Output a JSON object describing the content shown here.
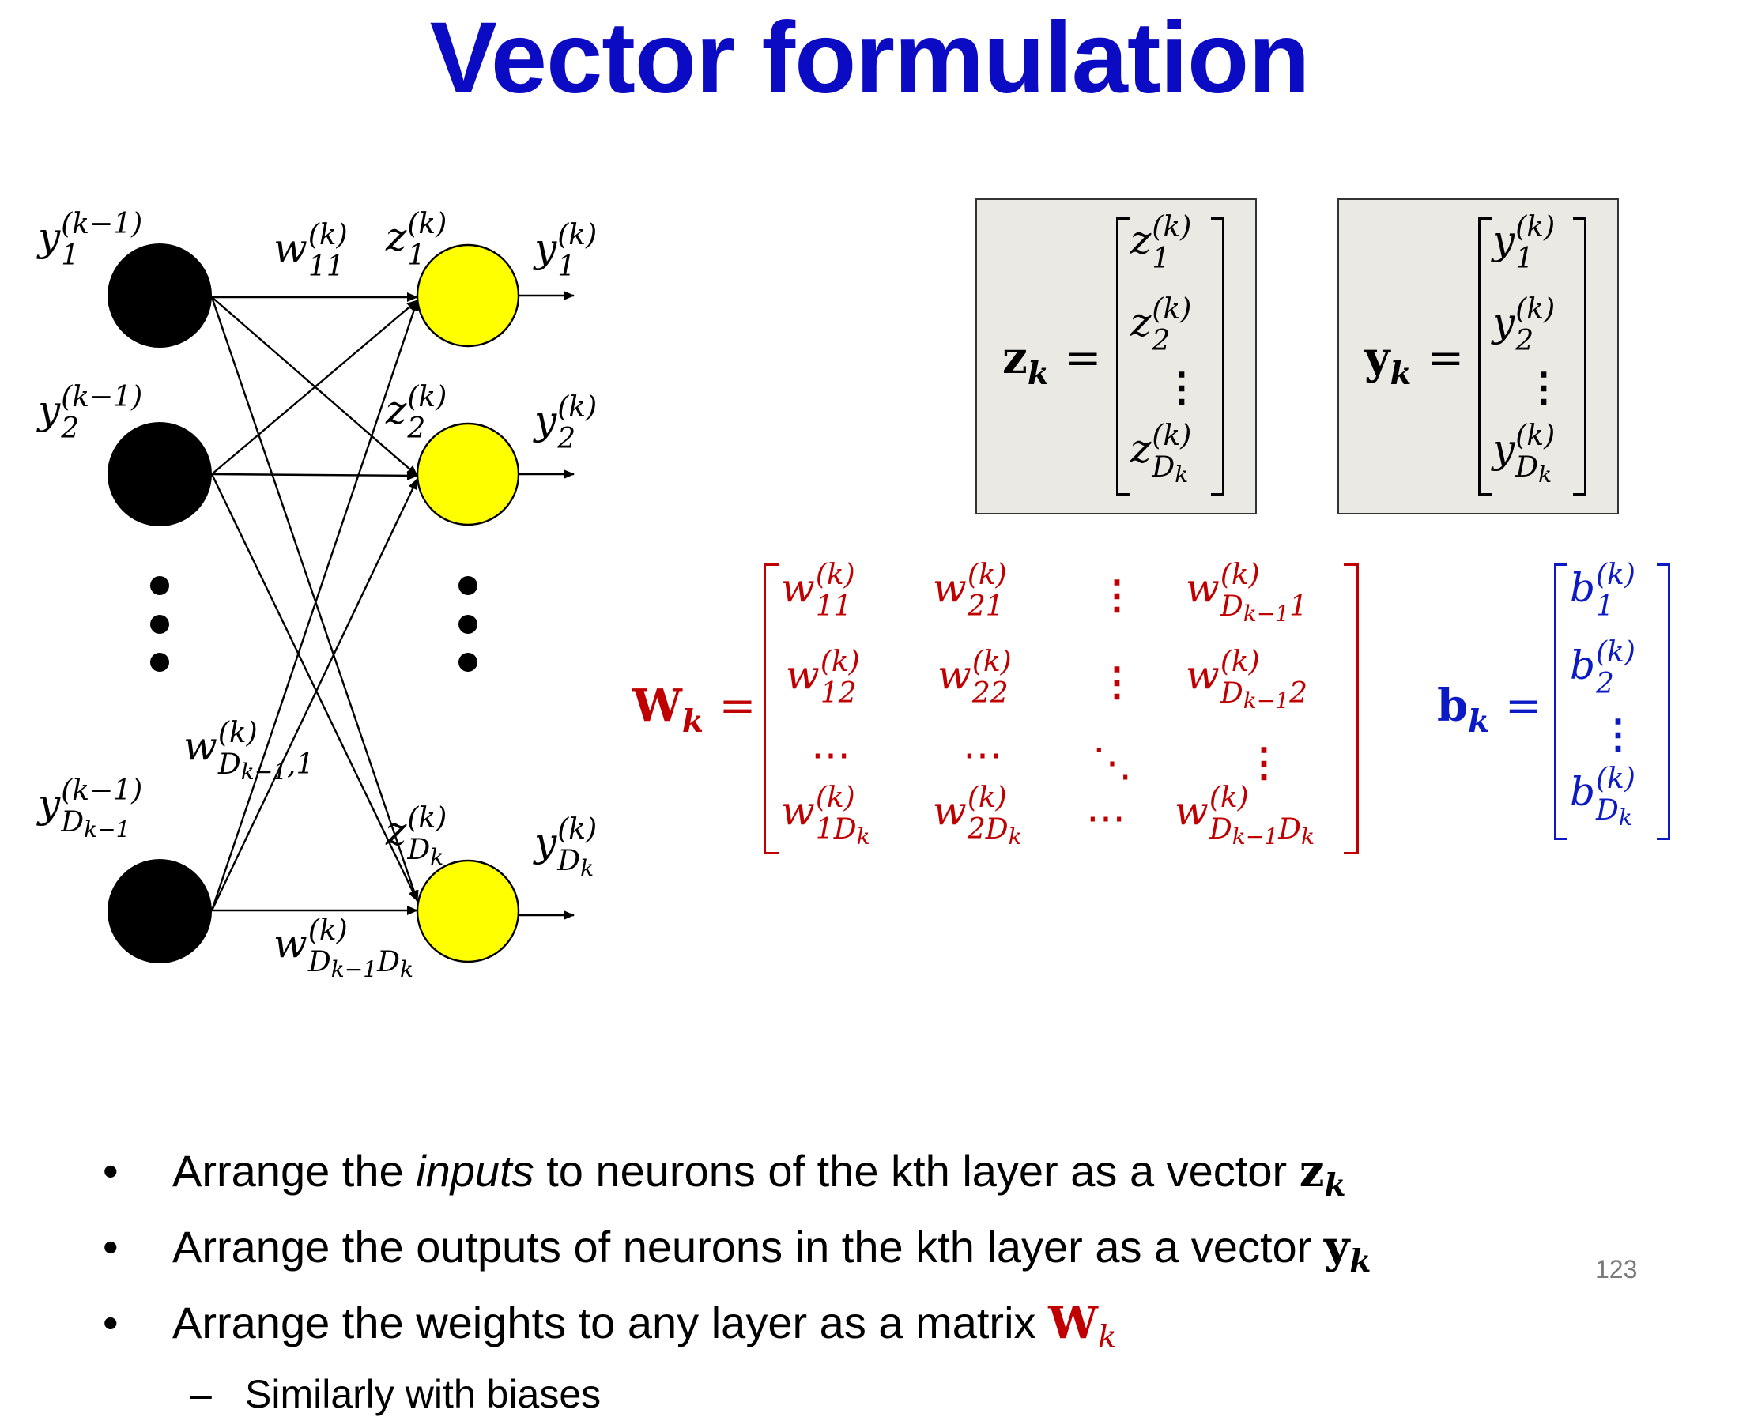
{
  "title": "Vector formulation",
  "network": {
    "input_labels": {
      "y1": {
        "base": "y",
        "sub": "1",
        "sup": "(k−1)"
      },
      "y2": {
        "base": "y",
        "sub": "2",
        "sup": "(k−1)"
      },
      "yD": {
        "base": "y",
        "sub": "D",
        "subsub": "k−1",
        "sup": "(k−1)"
      }
    },
    "z_labels": {
      "z1": {
        "base": "z",
        "sub": "1",
        "sup": "(k)"
      },
      "z2": {
        "base": "z",
        "sub": "2",
        "sup": "(k)"
      },
      "zD": {
        "base": "z",
        "sub": "D",
        "subsub": "k",
        "sup": "(k)"
      }
    },
    "output_labels": {
      "y1": {
        "base": "y",
        "sub": "1",
        "sup": "(k)"
      },
      "y2": {
        "base": "y",
        "sub": "2",
        "sup": "(k)"
      },
      "yD": {
        "base": "y",
        "sub": "D",
        "subsub": "k",
        "sup": "(k)"
      }
    },
    "weight_labels": {
      "w11": {
        "base": "w",
        "sub": "11",
        "sup": "(k)"
      },
      "wDk1": {
        "base": "w",
        "sub": "D",
        "subsub": "k−1",
        "subtail": ",1",
        "sup": "(k)"
      },
      "wDD": {
        "base": "w",
        "sub": "D",
        "subsub": "k−1",
        "subtail": "D",
        "subsub2": "k",
        "sup": "(k)"
      }
    },
    "colors": {
      "input_neuron": "#000000",
      "output_neuron": "#ffff00",
      "edge": "#000000"
    }
  },
  "z_vector": {
    "lhs": "z",
    "lhs_sub": "k",
    "eq": "=",
    "entries": [
      "z_1^(k)",
      "z_2^(k)",
      "⋮",
      "z_{D_k}^(k)"
    ]
  },
  "y_vector": {
    "lhs": "y",
    "lhs_sub": "k",
    "eq": "=",
    "entries": [
      "y_1^(k)",
      "y_2^(k)",
      "⋮",
      "y_{D_k}^(k)"
    ]
  },
  "W_matrix": {
    "lhs": "W",
    "lhs_sub": "k",
    "eq": "=",
    "color": "#c00000",
    "rows": [
      [
        "w_11^(k)",
        "w_21^(k)",
        "⋮",
        "w_{D_{k−1}1}^(k)"
      ],
      [
        "w_12^(k)",
        "w_22^(k)",
        "⋮",
        "w_{D_{k−1}2}^(k)"
      ],
      [
        "⋯",
        "⋯",
        "⋱",
        "⋮"
      ],
      [
        "w_{1D_k}^(k)",
        "w_{2D_k}^(k)",
        "⋯",
        "w_{D_{k−1}D_k}^(k)"
      ]
    ]
  },
  "b_vector": {
    "lhs": "b",
    "lhs_sub": "k",
    "eq": "=",
    "color": "#0b1ac4",
    "entries": [
      "b_1^(k)",
      "b_2^(k)",
      "⋮",
      "b_{D_k}^(k)"
    ]
  },
  "bullets": [
    {
      "marker": "•",
      "parts": [
        "Arrange the ",
        "inputs",
        " to neurons of the kth layer as a vector "
      ],
      "math": "z",
      "math_sub": "k"
    },
    {
      "marker": "•",
      "parts": [
        "Arrange the outputs of neurons in the kth layer as a vector "
      ],
      "math": "y",
      "math_sub": "k"
    },
    {
      "marker": "•",
      "parts": [
        "Arrange the weights to any layer as a matrix "
      ],
      "math": "W",
      "math_sub": "k"
    }
  ],
  "sub_bullet": {
    "marker": "–",
    "text": "Similarly with biases"
  },
  "page_number": "123"
}
